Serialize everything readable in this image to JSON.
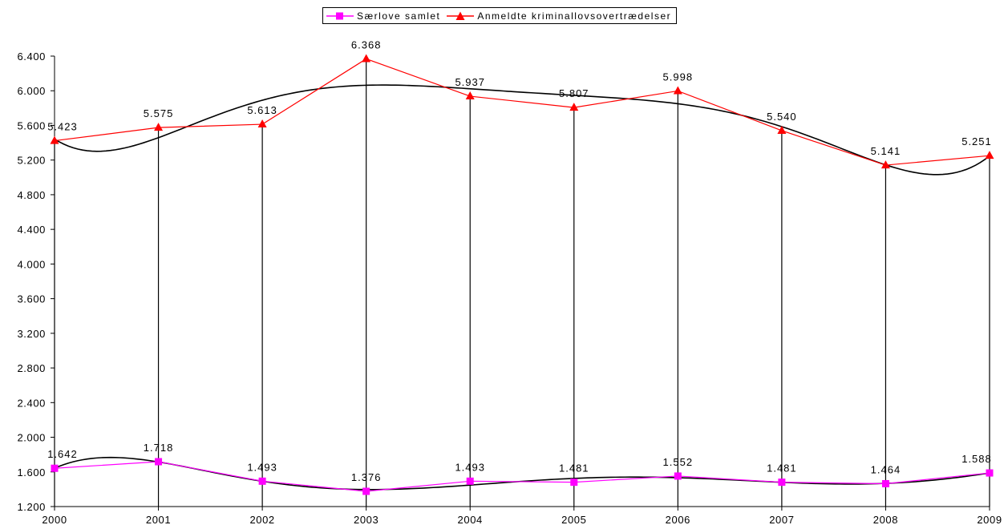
{
  "chart_data": {
    "type": "line",
    "categories": [
      "2000",
      "2001",
      "2002",
      "2003",
      "2004",
      "2005",
      "2006",
      "2007",
      "2008",
      "2009"
    ],
    "series": [
      {
        "name": "Særlove samlet",
        "color": "#ff00ff",
        "marker": "square",
        "values": [
          1642,
          1718,
          1493,
          1376,
          1493,
          1481,
          1552,
          1481,
          1464,
          1588
        ],
        "labels": [
          "1.642",
          "1.718",
          "1.493",
          "1.376",
          "1.493",
          "1.481",
          "1.552",
          "1.481",
          "1.464",
          "1.588"
        ]
      },
      {
        "name": "Anmeldte kriminallovsovertrædelser",
        "color": "#ff0000",
        "marker": "triangle",
        "values": [
          5423,
          5575,
          5613,
          6368,
          5937,
          5807,
          5998,
          5540,
          5141,
          5251
        ],
        "labels": [
          "5.423",
          "5.575",
          "5.613",
          "6.368",
          "5.937",
          "5.807",
          "5.998",
          "5.540",
          "5.141",
          "5.251"
        ]
      }
    ],
    "ylim": [
      1200,
      6400
    ],
    "yticks": [
      1200,
      1600,
      2000,
      2400,
      2800,
      3200,
      3600,
      4000,
      4400,
      4800,
      5200,
      5600,
      6000,
      6400
    ],
    "ytick_labels": [
      "1.200",
      "1.600",
      "2.000",
      "2.400",
      "2.800",
      "3.200",
      "3.600",
      "4.000",
      "4.400",
      "4.800",
      "5.200",
      "5.600",
      "6.000",
      "6.400"
    ],
    "trendline_color": "#000000",
    "drop_lines": true,
    "legend_position": "top-center",
    "grid": false
  }
}
